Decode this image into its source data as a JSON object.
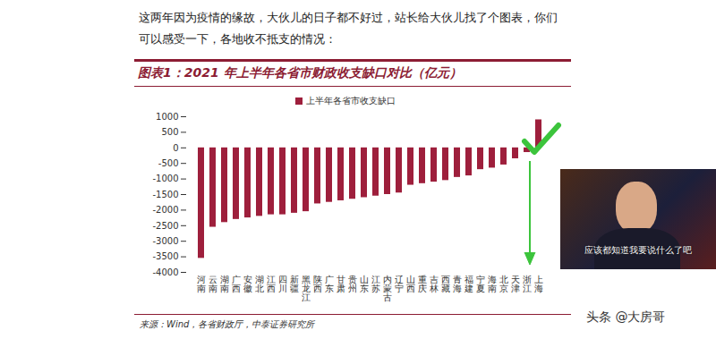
{
  "chart_data": {
    "type": "bar",
    "title": "图表1：2021 年上半年各省市财政收支缺口对比（亿元）",
    "categories": [
      "河南",
      "云南",
      "湖南",
      "广西",
      "安徽",
      "湖北",
      "江西",
      "四川",
      "新疆",
      "黑龙江",
      "陕西",
      "广东",
      "甘肃",
      "贵州",
      "山东",
      "江苏",
      "内蒙古",
      "辽宁",
      "山西",
      "重庆",
      "吉林",
      "西藏",
      "青海",
      "福建",
      "宁夏",
      "海南",
      "北京",
      "天津",
      "浙江",
      "上海"
    ],
    "series": [
      {
        "name": "上半年各省市收支缺口",
        "color": "#9e1f3c",
        "values": [
          -3550,
          -2550,
          -2400,
          -2300,
          -2250,
          -2200,
          -2150,
          -2150,
          -2100,
          -2050,
          -1800,
          -1750,
          -1700,
          -1650,
          -1600,
          -1550,
          -1500,
          -1450,
          -1200,
          -1150,
          -1100,
          -1050,
          -950,
          -900,
          -700,
          -650,
          -550,
          -350,
          -150,
          900
        ]
      }
    ],
    "ylim": [
      -4000,
      1000
    ],
    "yticks": [
      -4000,
      -3500,
      -3000,
      -2500,
      -2000,
      -1500,
      -1000,
      -500,
      0,
      500,
      1000
    ],
    "legend": "top",
    "grid": false,
    "source": "来源：Wind，各省财政厅，中泰证券研究所"
  },
  "page": {
    "intro": "这两年因为疫情的缘故，大伙儿的日子都不好过，站长给大伙儿找了个图表，你们可以感受一下，各地收不抵支的情况：",
    "inset_caption": "应该都知道我要说什么了吧",
    "watermark": "头条 @大房哥"
  }
}
